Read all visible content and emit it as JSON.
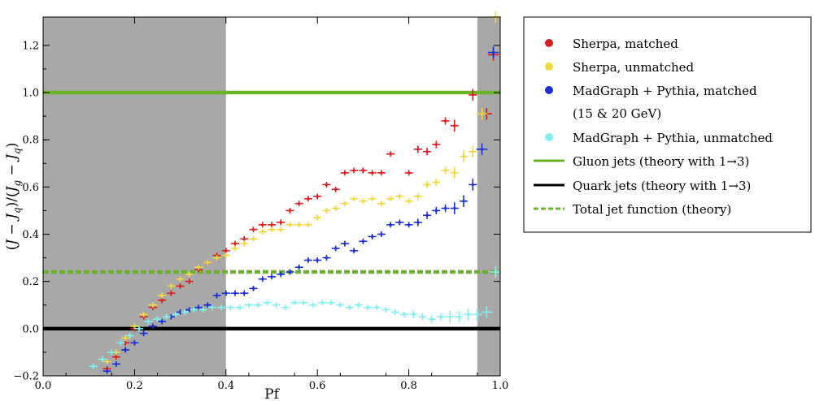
{
  "chart_data": {
    "type": "scatter",
    "xlabel": "Pf",
    "ylabel": "(J − J_q)/(J_g − J_q)",
    "ylabel_parts": [
      "(",
      "J",
      " − ",
      "J",
      "q",
      ")/(",
      "J",
      "g",
      " − ",
      "J",
      "q",
      ")"
    ],
    "xlim": [
      0.0,
      1.0
    ],
    "ylim": [
      -0.2,
      1.32
    ],
    "xticks": [
      0.0,
      0.2,
      0.4,
      0.6,
      0.8,
      1.0
    ],
    "xtick_labels": [
      "0.0",
      "0.2",
      "0.4",
      "0.6",
      "0.8",
      "1.0"
    ],
    "yticks": [
      -0.2,
      0.0,
      0.2,
      0.4,
      0.6,
      0.8,
      1.0,
      1.2
    ],
    "ytick_labels": [
      "−0.2",
      "0.0",
      "0.2",
      "0.4",
      "0.6",
      "0.8",
      "1.0",
      "1.2"
    ],
    "shaded_regions": [
      [
        0.0,
        0.4
      ],
      [
        0.95,
        1.0
      ]
    ],
    "shade_color": "#a8a8a8",
    "reference_lines": [
      {
        "name": "Gluon jets (theory with 1→3)",
        "y": 1.0,
        "color": "#6ab42a",
        "style": "solid"
      },
      {
        "name": "Quark jets (theory with 1→3)",
        "y": 0.0,
        "color": "#000000",
        "style": "solid"
      },
      {
        "name": "Total jet function (theory)",
        "y": 0.24,
        "color": "#6ab42a",
        "style": "dashed"
      }
    ],
    "series": [
      {
        "name": "Sherpa, matched",
        "color": "#dd1d1d",
        "points": [
          [
            0.14,
            -0.17
          ],
          [
            0.16,
            -0.12
          ],
          [
            0.18,
            -0.06
          ],
          [
            0.2,
            0.0
          ],
          [
            0.22,
            0.05
          ],
          [
            0.24,
            0.09
          ],
          [
            0.26,
            0.12
          ],
          [
            0.28,
            0.15
          ],
          [
            0.3,
            0.18
          ],
          [
            0.32,
            0.2
          ],
          [
            0.34,
            0.25
          ],
          [
            0.36,
            0.28
          ],
          [
            0.38,
            0.31
          ],
          [
            0.4,
            0.33
          ],
          [
            0.42,
            0.36
          ],
          [
            0.44,
            0.38
          ],
          [
            0.46,
            0.42
          ],
          [
            0.48,
            0.44
          ],
          [
            0.5,
            0.44
          ],
          [
            0.52,
            0.45
          ],
          [
            0.54,
            0.5
          ],
          [
            0.56,
            0.53
          ],
          [
            0.58,
            0.55
          ],
          [
            0.6,
            0.56
          ],
          [
            0.62,
            0.61
          ],
          [
            0.64,
            0.59
          ],
          [
            0.66,
            0.66
          ],
          [
            0.68,
            0.67
          ],
          [
            0.7,
            0.67
          ],
          [
            0.72,
            0.66
          ],
          [
            0.74,
            0.66
          ],
          [
            0.76,
            0.74
          ],
          [
            0.8,
            0.66
          ],
          [
            0.82,
            0.76
          ],
          [
            0.84,
            0.75
          ],
          [
            0.86,
            0.78
          ],
          [
            0.88,
            0.88
          ],
          [
            0.9,
            0.86
          ],
          [
            0.94,
            0.99
          ],
          [
            0.97,
            0.91
          ],
          [
            0.985,
            1.16
          ]
        ]
      },
      {
        "name": "Sherpa, unmatched",
        "color": "#f2d83a",
        "points": [
          [
            0.14,
            -0.14
          ],
          [
            0.16,
            -0.1
          ],
          [
            0.18,
            -0.04
          ],
          [
            0.2,
            0.01
          ],
          [
            0.22,
            0.06
          ],
          [
            0.24,
            0.1
          ],
          [
            0.26,
            0.14
          ],
          [
            0.28,
            0.18
          ],
          [
            0.3,
            0.21
          ],
          [
            0.32,
            0.23
          ],
          [
            0.34,
            0.26
          ],
          [
            0.36,
            0.28
          ],
          [
            0.38,
            0.3
          ],
          [
            0.4,
            0.31
          ],
          [
            0.42,
            0.34
          ],
          [
            0.44,
            0.36
          ],
          [
            0.46,
            0.38
          ],
          [
            0.48,
            0.41
          ],
          [
            0.5,
            0.42
          ],
          [
            0.52,
            0.42
          ],
          [
            0.54,
            0.44
          ],
          [
            0.56,
            0.44
          ],
          [
            0.58,
            0.44
          ],
          [
            0.6,
            0.47
          ],
          [
            0.62,
            0.5
          ],
          [
            0.64,
            0.51
          ],
          [
            0.66,
            0.53
          ],
          [
            0.68,
            0.55
          ],
          [
            0.7,
            0.54
          ],
          [
            0.72,
            0.55
          ],
          [
            0.74,
            0.53
          ],
          [
            0.76,
            0.55
          ],
          [
            0.78,
            0.56
          ],
          [
            0.8,
            0.54
          ],
          [
            0.82,
            0.56
          ],
          [
            0.84,
            0.61
          ],
          [
            0.86,
            0.62
          ],
          [
            0.88,
            0.67
          ],
          [
            0.9,
            0.66
          ],
          [
            0.92,
            0.73
          ],
          [
            0.94,
            0.75
          ],
          [
            0.96,
            0.91
          ],
          [
            0.99,
            1.32
          ]
        ]
      },
      {
        "name": "MadGraph + Pythia, matched",
        "color": "#1a2fd6",
        "points": [
          [
            0.14,
            -0.18
          ],
          [
            0.16,
            -0.15
          ],
          [
            0.18,
            -0.09
          ],
          [
            0.2,
            -0.06
          ],
          [
            0.22,
            -0.02
          ],
          [
            0.24,
            0.01
          ],
          [
            0.26,
            0.03
          ],
          [
            0.28,
            0.05
          ],
          [
            0.3,
            0.07
          ],
          [
            0.32,
            0.08
          ],
          [
            0.34,
            0.09
          ],
          [
            0.36,
            0.1
          ],
          [
            0.38,
            0.14
          ],
          [
            0.4,
            0.15
          ],
          [
            0.42,
            0.15
          ],
          [
            0.44,
            0.15
          ],
          [
            0.46,
            0.17
          ],
          [
            0.48,
            0.21
          ],
          [
            0.5,
            0.22
          ],
          [
            0.52,
            0.23
          ],
          [
            0.54,
            0.24
          ],
          [
            0.56,
            0.26
          ],
          [
            0.58,
            0.29
          ],
          [
            0.6,
            0.29
          ],
          [
            0.62,
            0.3
          ],
          [
            0.64,
            0.34
          ],
          [
            0.66,
            0.36
          ],
          [
            0.68,
            0.33
          ],
          [
            0.7,
            0.37
          ],
          [
            0.72,
            0.39
          ],
          [
            0.74,
            0.4
          ],
          [
            0.76,
            0.44
          ],
          [
            0.78,
            0.45
          ],
          [
            0.8,
            0.44
          ],
          [
            0.82,
            0.45
          ],
          [
            0.84,
            0.48
          ],
          [
            0.86,
            0.5
          ],
          [
            0.88,
            0.51
          ],
          [
            0.9,
            0.51
          ],
          [
            0.92,
            0.54
          ],
          [
            0.94,
            0.61
          ],
          [
            0.96,
            0.76
          ],
          [
            0.985,
            1.17
          ]
        ]
      },
      {
        "name": "MadGraph + Pythia, unmatched",
        "color": "#7ff0f0",
        "points": [
          [
            0.11,
            -0.16
          ],
          [
            0.13,
            -0.13
          ],
          [
            0.15,
            -0.1
          ],
          [
            0.17,
            -0.06
          ],
          [
            0.19,
            -0.03
          ],
          [
            0.21,
            0.0
          ],
          [
            0.23,
            0.03
          ],
          [
            0.25,
            0.04
          ],
          [
            0.27,
            0.05
          ],
          [
            0.29,
            0.06
          ],
          [
            0.31,
            0.07
          ],
          [
            0.33,
            0.08
          ],
          [
            0.35,
            0.08
          ],
          [
            0.37,
            0.09
          ],
          [
            0.39,
            0.09
          ],
          [
            0.41,
            0.09
          ],
          [
            0.43,
            0.09
          ],
          [
            0.45,
            0.1
          ],
          [
            0.47,
            0.1
          ],
          [
            0.49,
            0.11
          ],
          [
            0.51,
            0.1
          ],
          [
            0.53,
            0.09
          ],
          [
            0.55,
            0.11
          ],
          [
            0.57,
            0.11
          ],
          [
            0.59,
            0.1
          ],
          [
            0.61,
            0.11
          ],
          [
            0.63,
            0.11
          ],
          [
            0.65,
            0.1
          ],
          [
            0.67,
            0.09
          ],
          [
            0.69,
            0.1
          ],
          [
            0.71,
            0.09
          ],
          [
            0.73,
            0.09
          ],
          [
            0.75,
            0.08
          ],
          [
            0.77,
            0.07
          ],
          [
            0.79,
            0.06
          ],
          [
            0.81,
            0.06
          ],
          [
            0.83,
            0.05
          ],
          [
            0.85,
            0.04
          ],
          [
            0.87,
            0.05
          ],
          [
            0.89,
            0.05
          ],
          [
            0.91,
            0.05
          ],
          [
            0.93,
            0.06
          ],
          [
            0.95,
            0.06
          ],
          [
            0.97,
            0.07
          ],
          [
            0.99,
            0.24
          ]
        ]
      }
    ],
    "legend": {
      "placement": "right, outside plot",
      "entries": [
        {
          "label": "Sherpa, matched",
          "marker": "dot",
          "color": "#dd1d1d"
        },
        {
          "label": "Sherpa, unmatched",
          "marker": "dot",
          "color": "#f2d83a"
        },
        {
          "label": "MadGraph + Pythia, matched",
          "marker": "dot",
          "color": "#1a2fd6"
        },
        {
          "label": "(15 & 20 GeV)",
          "marker": "none",
          "color": ""
        },
        {
          "label": "MadGraph + Pythia, unmatched",
          "marker": "dot",
          "color": "#7ff0f0"
        },
        {
          "label": "Gluon jets (theory with 1→3)",
          "marker": "line",
          "color": "#6ab42a"
        },
        {
          "label": "Quark jets (theory with 1→3)",
          "marker": "line",
          "color": "#000000"
        },
        {
          "label": "Total jet function (theory)",
          "marker": "dashed",
          "color": "#6ab42a"
        }
      ]
    }
  }
}
